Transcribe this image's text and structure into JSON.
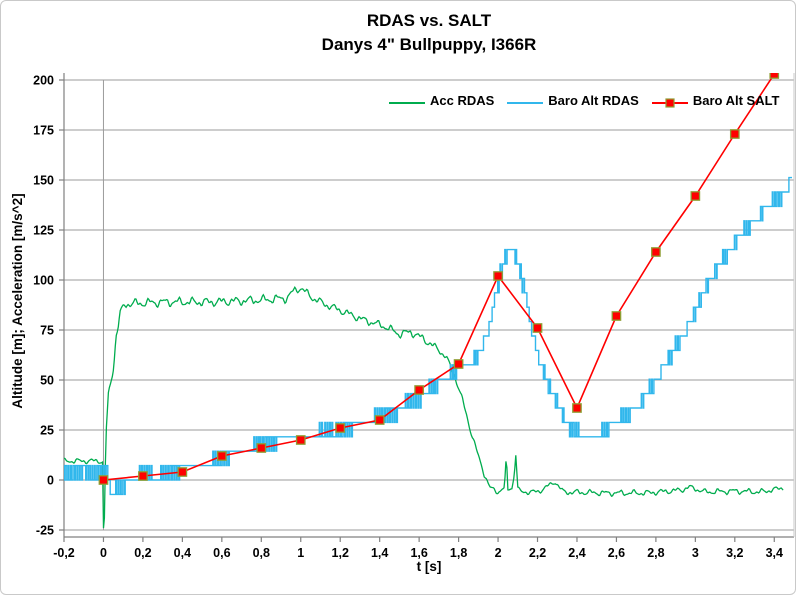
{
  "title": {
    "line1": "RDAS vs. SALT",
    "line2": "Danys 4\" Bullpuppy, I366R"
  },
  "axes": {
    "x": {
      "title": "t [s]",
      "min": -0.2,
      "max": 3.5,
      "tick_values": [
        -0.2,
        0,
        0.2,
        0.4,
        0.6,
        0.8,
        1,
        1.2,
        1.4,
        1.6,
        1.8,
        2,
        2.2,
        2.4,
        2.6,
        2.8,
        3,
        3.2,
        3.4
      ],
      "tick_labels": [
        "-0,2",
        "0",
        "0,2",
        "0,4",
        "0,6",
        "0,8",
        "1",
        "1,2",
        "1,4",
        "1,6",
        "1,8",
        "2",
        "2,2",
        "2,4",
        "2,6",
        "2,8",
        "3",
        "3,2",
        "3,4"
      ]
    },
    "y": {
      "title": "Altitude [m]; Acceleration [m/s^2]",
      "min": -25,
      "max": 200,
      "tick_values": [
        -25,
        0,
        25,
        50,
        75,
        100,
        125,
        150,
        175,
        200
      ],
      "tick_labels": [
        "-25",
        "0",
        "25",
        "50",
        "75",
        "100",
        "125",
        "150",
        "175",
        "200"
      ]
    }
  },
  "colors": {
    "grid": "#9B9B9B",
    "axis": "#808080",
    "plot_border": "#C9C9C9",
    "text": "#000000"
  },
  "chart_data": {
    "type": "line",
    "title": "RDAS vs. SALT — Danys 4\" Bullpuppy, I366R",
    "xlabel": "t [s]",
    "ylabel": "Altitude [m]; Acceleration [m/s^2]",
    "xlim": [
      -0.2,
      3.5
    ],
    "ylim": [
      -25,
      200
    ],
    "grid": "horizontal",
    "legend_position": "top-inside",
    "series": [
      {
        "name": "Acc RDAS",
        "color": "#00AC4E",
        "style": "noisy-line",
        "description": "accelerometer trace: ~+10 m/s^2 on pad, motor burn plateau ~88-96 until t=1.0, slow decay to ~65 at t=1.7, rapid drop through 0 near t=1.93, coast ~-6 with ejection spikes ~+13 at t=2.04 and 2.09",
        "keypoints_t_v_noise": [
          [
            -0.21,
            9.5,
            1.5
          ],
          [
            -0.02,
            9.5,
            1.5
          ],
          [
            -0.005,
            9,
            1
          ],
          [
            0,
            -24,
            0
          ],
          [
            0.006,
            -18,
            0
          ],
          [
            0.012,
            22,
            1
          ],
          [
            0.025,
            40,
            5
          ],
          [
            0.045,
            55,
            6
          ],
          [
            0.065,
            72,
            5
          ],
          [
            0.085,
            83,
            3
          ],
          [
            0.11,
            88,
            2.6
          ],
          [
            0.3,
            89,
            2.6
          ],
          [
            0.55,
            89,
            2.6
          ],
          [
            0.8,
            90,
            2.6
          ],
          [
            0.93,
            91,
            2.6
          ],
          [
            0.97,
            95,
            2.2
          ],
          [
            1.0,
            96,
            2.2
          ],
          [
            1.06,
            91,
            2.2
          ],
          [
            1.12,
            88,
            2.2
          ],
          [
            1.22,
            84,
            2.2
          ],
          [
            1.32,
            80,
            2.2
          ],
          [
            1.42,
            77,
            2.2
          ],
          [
            1.5,
            73,
            2.4
          ],
          [
            1.56,
            74,
            2.4
          ],
          [
            1.63,
            70,
            2.4
          ],
          [
            1.7,
            65,
            2
          ],
          [
            1.74,
            61,
            1.5
          ],
          [
            1.78,
            52,
            1.5
          ],
          [
            1.82,
            40,
            1.5
          ],
          [
            1.86,
            25,
            1.5
          ],
          [
            1.9,
            12,
            1.5
          ],
          [
            1.93,
            3,
            1.5
          ],
          [
            1.96,
            -4,
            1.5
          ],
          [
            2.0,
            -6,
            1.5
          ],
          [
            2.03,
            -4,
            0.8
          ],
          [
            2.036,
            2,
            0.4
          ],
          [
            2.042,
            12.5,
            0.3
          ],
          [
            2.05,
            -5,
            0.8
          ],
          [
            2.07,
            -4,
            0.8
          ],
          [
            2.082,
            2,
            0.4
          ],
          [
            2.09,
            12.5,
            0.3
          ],
          [
            2.1,
            -4,
            0.8
          ],
          [
            2.12,
            -6,
            1.3
          ],
          [
            2.2,
            -6,
            1.7
          ],
          [
            2.27,
            -2,
            1.2
          ],
          [
            2.29,
            -1,
            1.2
          ],
          [
            2.33,
            -6,
            1.7
          ],
          [
            2.55,
            -6.5,
            1.7
          ],
          [
            2.75,
            -6.5,
            1.7
          ],
          [
            2.93,
            -5,
            1.6
          ],
          [
            2.97,
            -3.5,
            1.4
          ],
          [
            3.05,
            -6,
            1.7
          ],
          [
            3.2,
            -5.5,
            1.7
          ],
          [
            3.33,
            -6,
            1.7
          ],
          [
            3.44,
            -4,
            1.4
          ]
        ]
      },
      {
        "name": "Baro Alt RDAS",
        "color": "#31B7EC",
        "style": "quantized-step-line",
        "quant_step_m": 7.2,
        "noise_amp": 3.2,
        "description": "barometric altitude, ~7 m quantization steps; dip to ~-7 m just after launch, stepped climb to ~58 m at t=1.85, mach/apogee peak ~115 m at t=2.05, fall to ~22 m valley t=2.4-2.5, stepped rise to ~150 m at right edge",
        "envelope_t_v": [
          [
            -0.21,
            4
          ],
          [
            0.02,
            4
          ],
          [
            0.035,
            -6
          ],
          [
            0.095,
            -6
          ],
          [
            0.115,
            1
          ],
          [
            0.2,
            2
          ],
          [
            0.3,
            3
          ],
          [
            0.4,
            5.5
          ],
          [
            0.5,
            8
          ],
          [
            0.58,
            10
          ],
          [
            0.66,
            13
          ],
          [
            0.74,
            16
          ],
          [
            0.82,
            19
          ],
          [
            0.9,
            21
          ],
          [
            1.0,
            21.5
          ],
          [
            1.1,
            23
          ],
          [
            1.2,
            25
          ],
          [
            1.3,
            28
          ],
          [
            1.4,
            31.5
          ],
          [
            1.5,
            36
          ],
          [
            1.58,
            41
          ],
          [
            1.66,
            45.5
          ],
          [
            1.73,
            50
          ],
          [
            1.79,
            55.5
          ],
          [
            1.86,
            58.5
          ],
          [
            1.91,
            64
          ],
          [
            1.95,
            75
          ],
          [
            1.98,
            89
          ],
          [
            2.01,
            102
          ],
          [
            2.035,
            111
          ],
          [
            2.055,
            115
          ],
          [
            2.09,
            111
          ],
          [
            2.11,
            105
          ],
          [
            2.14,
            92
          ],
          [
            2.17,
            75
          ],
          [
            2.21,
            60
          ],
          [
            2.25,
            48
          ],
          [
            2.29,
            40
          ],
          [
            2.34,
            30
          ],
          [
            2.39,
            24
          ],
          [
            2.43,
            22
          ],
          [
            2.52,
            22
          ],
          [
            2.57,
            26
          ],
          [
            2.62,
            30
          ],
          [
            2.67,
            34
          ],
          [
            2.72,
            39
          ],
          [
            2.77,
            46
          ],
          [
            2.82,
            53
          ],
          [
            2.87,
            61
          ],
          [
            2.92,
            69
          ],
          [
            2.97,
            78
          ],
          [
            3.02,
            90
          ],
          [
            3.07,
            100
          ],
          [
            3.12,
            108
          ],
          [
            3.17,
            115
          ],
          [
            3.22,
            121
          ],
          [
            3.27,
            127
          ],
          [
            3.32,
            132
          ],
          [
            3.37,
            136.5
          ],
          [
            3.42,
            141
          ],
          [
            3.46,
            146
          ],
          [
            3.49,
            151
          ]
        ]
      },
      {
        "name": "Baro Alt SALT",
        "color": "#FF0000",
        "style": "line-with-markers",
        "marker": "square",
        "marker_fill": "#FF0000",
        "marker_stroke": "#8F9E33",
        "points_t_alt": [
          [
            0,
            0
          ],
          [
            0.2,
            2
          ],
          [
            0.4,
            4
          ],
          [
            0.6,
            12
          ],
          [
            0.8,
            16
          ],
          [
            1.0,
            20
          ],
          [
            1.2,
            26
          ],
          [
            1.4,
            30
          ],
          [
            1.6,
            45
          ],
          [
            1.8,
            58
          ],
          [
            2.0,
            102
          ],
          [
            2.2,
            76
          ],
          [
            2.4,
            36
          ],
          [
            2.6,
            82
          ],
          [
            2.8,
            114
          ],
          [
            3.0,
            142
          ],
          [
            3.2,
            173
          ],
          [
            3.4,
            203
          ]
        ]
      }
    ]
  }
}
